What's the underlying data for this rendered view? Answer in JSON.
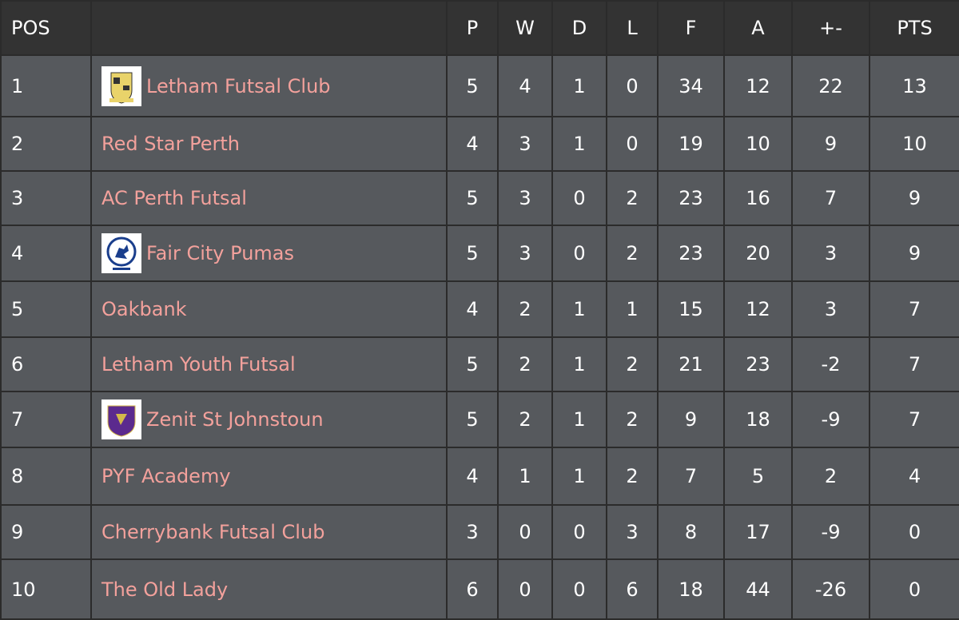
{
  "table": {
    "header": [
      "POS",
      "",
      "P",
      "W",
      "D",
      "L",
      "F",
      "A",
      "+-",
      "PTS"
    ],
    "rows": [
      [
        1,
        "Letham Futsal Club",
        5,
        4,
        1,
        0,
        34,
        12,
        22,
        13
      ],
      [
        2,
        "Red Star Perth",
        4,
        3,
        1,
        0,
        19,
        10,
        9,
        10
      ],
      [
        3,
        "AC Perth Futsal",
        5,
        3,
        0,
        2,
        23,
        16,
        7,
        9
      ],
      [
        4,
        "Fair City Pumas",
        5,
        3,
        0,
        2,
        23,
        20,
        3,
        9
      ],
      [
        5,
        "Oakbank",
        4,
        2,
        1,
        1,
        15,
        12,
        3,
        7
      ],
      [
        6,
        "Letham Youth Futsal",
        5,
        2,
        1,
        2,
        21,
        23,
        -2,
        7
      ],
      [
        7,
        "Zenit St Johnstoun",
        5,
        2,
        1,
        2,
        9,
        18,
        -9,
        7
      ],
      [
        8,
        "PYF Academy",
        4,
        1,
        1,
        2,
        7,
        5,
        2,
        4
      ],
      [
        9,
        "Cherrybank Futsal Club",
        3,
        0,
        0,
        3,
        8,
        17,
        -9,
        0
      ],
      [
        10,
        "The Old Lady",
        6,
        0,
        0,
        6,
        18,
        44,
        -26,
        0
      ]
    ]
  }
}
